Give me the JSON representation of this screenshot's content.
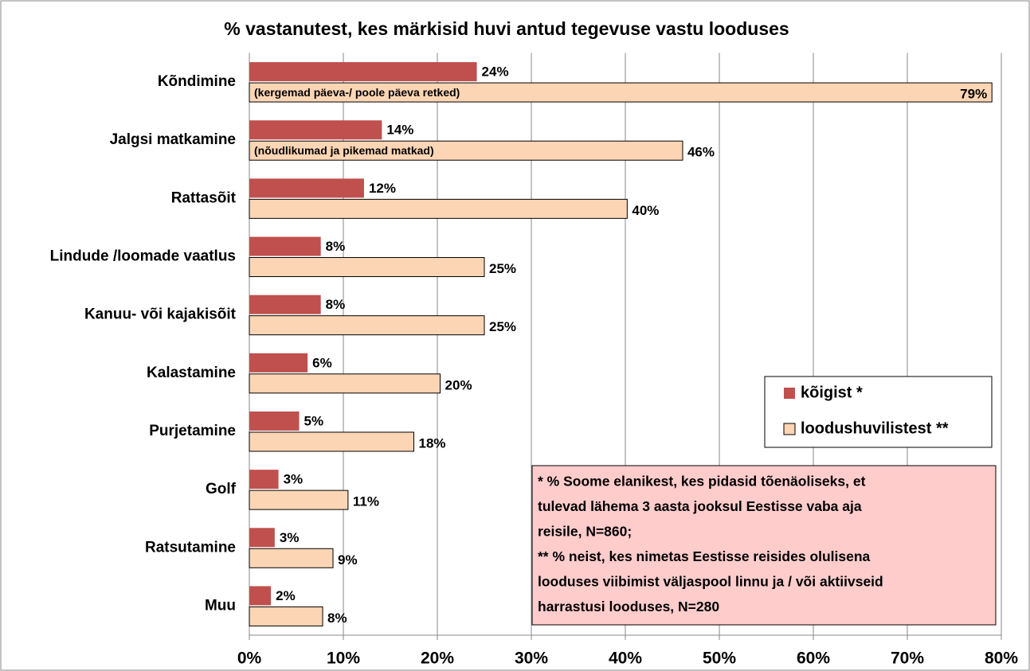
{
  "chart_data": {
    "type": "hbar",
    "title": "% vastanutest, kes märkisid huvi antud tegevuse vastu looduses",
    "categories": [
      "Kõndimine",
      "Jalgsi matkamine",
      "Rattasõit",
      "Lindude /loomade vaatlus",
      "Kanuu- või kajakisõit",
      "Kalastamine",
      "Purjetamine",
      "Golf",
      "Ratsutamine",
      "Muu"
    ],
    "series": [
      {
        "name": "kõigist *",
        "color": "#c0504d",
        "values": [
          24.2,
          14.1,
          12.2,
          7.6,
          7.6,
          6.2,
          5.3,
          3.1,
          2.7,
          2.3
        ],
        "value_labels": [
          "24%",
          "14%",
          "12%",
          "8%",
          "8%",
          "6%",
          "5%",
          "3%",
          "3%",
          "2%"
        ]
      },
      {
        "name": "loodushuvilistest **",
        "color": "#fcd5b4",
        "values": [
          79,
          46.1,
          40.2,
          25,
          25,
          20.3,
          17.5,
          10.5,
          8.9,
          7.8
        ],
        "value_labels": [
          "79%",
          "46%",
          "40%",
          "25%",
          "25%",
          "20%",
          "18%",
          "11%",
          "9%",
          "8%"
        ]
      }
    ],
    "bar_annotations": [
      "(kergemad päeva-/ poole päeva retked)",
      "(nõudlikumad ja pikemad matkad)"
    ],
    "xlim": [
      0,
      80
    ],
    "xticks": [
      {
        "value": 0,
        "label": "0%"
      },
      {
        "value": 10,
        "label": "10%"
      },
      {
        "value": 20,
        "label": "20%"
      },
      {
        "value": 30,
        "label": "30%"
      },
      {
        "value": 40,
        "label": "40%"
      },
      {
        "value": 50,
        "label": "50%"
      },
      {
        "value": 60,
        "label": "60%"
      },
      {
        "value": 70,
        "label": "70%"
      },
      {
        "value": 80,
        "label": "80%"
      }
    ],
    "grid": true,
    "legend": "right",
    "note": [
      "* % Soome elanikest, kes pidasid tõenäoliseks, et",
      "tulevad lähema 3 aasta jooksul Eestisse vaba aja",
      "reisile, N=860;",
      "** % neist, kes nimetas Eestisse reisides olulisena",
      "looduses viibimist väljaspool linnu ja / või aktiivseid",
      "harrastusi looduses, N=280"
    ]
  }
}
